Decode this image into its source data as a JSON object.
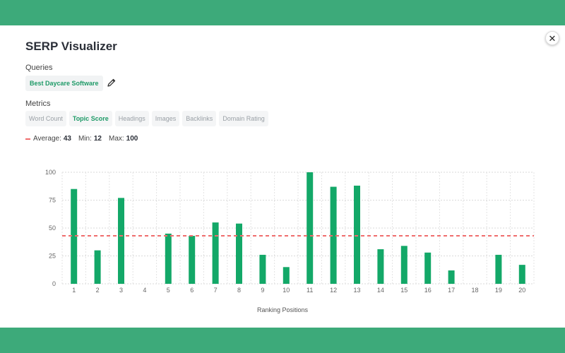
{
  "modal": {
    "title": "SERP Visualizer",
    "close_glyph": "✕",
    "queries_label": "Queries",
    "query_chip": "Best Daycare Software",
    "metrics_label": "Metrics",
    "metrics": [
      {
        "label": "Word Count",
        "active": false
      },
      {
        "label": "Topic Score",
        "active": true
      },
      {
        "label": "Headings",
        "active": false
      },
      {
        "label": "Images",
        "active": false
      },
      {
        "label": "Backlinks",
        "active": false
      },
      {
        "label": "Domain Rating",
        "active": false
      }
    ],
    "stats": {
      "average_label": "Average:",
      "average_value": "43",
      "min_label": "Min:",
      "min_value": "12",
      "max_label": "Max:",
      "max_value": "100"
    }
  },
  "icons": {
    "close": "close-icon",
    "edit": "pencil-icon"
  },
  "colors": {
    "header_band": "#3daa7a",
    "bar": "#13a868",
    "average_line": "#ef6d6d",
    "active_metric": "#1e9a67"
  },
  "chart_data": {
    "type": "bar",
    "categories": [
      "1",
      "2",
      "3",
      "4",
      "5",
      "6",
      "7",
      "8",
      "9",
      "10",
      "11",
      "12",
      "13",
      "14",
      "15",
      "16",
      "17",
      "18",
      "19",
      "20"
    ],
    "values": [
      85,
      30,
      77,
      null,
      45,
      43,
      55,
      54,
      26,
      15,
      100,
      87,
      88,
      31,
      34,
      28,
      12,
      null,
      26,
      17
    ],
    "average": 43,
    "xlabel": "Ranking Positions",
    "ylabel": "",
    "ylim": [
      0,
      100
    ],
    "yticks": [
      0,
      25,
      50,
      75,
      100
    ],
    "grid": true
  }
}
